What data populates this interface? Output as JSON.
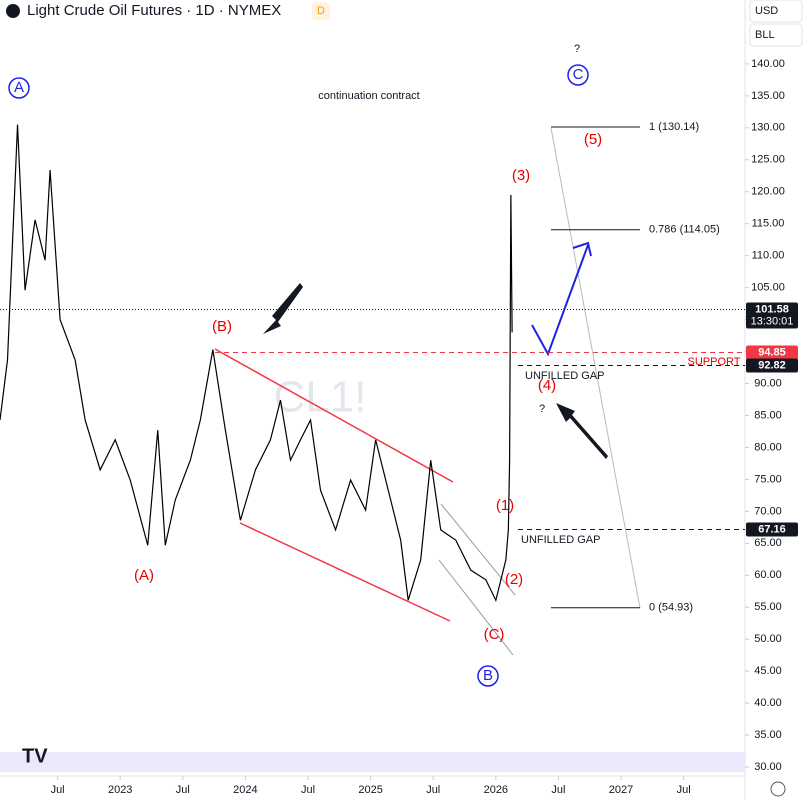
{
  "header": {
    "title": "Light Crude Oil Futures · 1D · NYMEX",
    "badge": "D",
    "currency": "USD",
    "unit": "BLL"
  },
  "chart_data": {
    "type": "line",
    "watermark": "CL1!",
    "color": "#000000",
    "x": [
      2022.04,
      2022.1,
      2022.18,
      2022.24,
      2022.32,
      2022.4,
      2022.44,
      2022.52,
      2022.64,
      2022.72,
      2022.84,
      2022.96,
      2023.08,
      2023.22,
      2023.3,
      2023.36,
      2023.44,
      2023.56,
      2023.64,
      2023.74,
      2023.84,
      2023.96,
      2024.08,
      2024.2,
      2024.28,
      2024.36,
      2024.44,
      2024.52,
      2024.6,
      2024.72,
      2024.84,
      2024.96,
      2025.04,
      2025.16,
      2025.24,
      2025.3,
      2025.4,
      2025.48,
      2025.56,
      2025.68,
      2025.8,
      2025.92,
      2026.0,
      2026.08,
      2026.1,
      2026.11,
      2026.12,
      2026.13
    ],
    "values": [
      84.3,
      93.7,
      130.5,
      104.6,
      115.6,
      109.3,
      123.4,
      100,
      93.7,
      84.3,
      76.5,
      81.2,
      74.9,
      64.7,
      82.7,
      64.7,
      71.8,
      78,
      84.3,
      95.3,
      82.7,
      68.6,
      76.5,
      81.2,
      87.4,
      78,
      81.2,
      84.3,
      73.3,
      67.1,
      74.9,
      70.2,
      81.2,
      71.8,
      65.5,
      56.1,
      62.4,
      78,
      67.1,
      65.5,
      60.8,
      59.3,
      56.1,
      62.4,
      67.1,
      78,
      119.5,
      98
    ],
    "xlim": [
      2022.04,
      2027.99
    ],
    "xticks": [
      {
        "value": 2022.5,
        "label": "Jul"
      },
      2023,
      {
        "value": 2023.5,
        "label": "Jul"
      },
      2024,
      {
        "value": 2024.5,
        "label": "Jul"
      },
      2025,
      {
        "value": 2025.5,
        "label": "Jul"
      },
      2026,
      {
        "value": 2026.5,
        "label": "Jul"
      },
      2027,
      {
        "value": 2027.5,
        "label": "Jul"
      }
    ],
    "ylim": [
      28.6,
      150
    ],
    "yticks": [
      {
        "value": 30,
        "label": "30.00"
      },
      {
        "value": 35,
        "label": "35.00"
      },
      {
        "value": 40,
        "label": "40.00"
      },
      {
        "value": 45,
        "label": "45.00"
      },
      {
        "value": 50,
        "label": "50.00"
      },
      {
        "value": 55,
        "label": "55.00"
      },
      {
        "value": 60,
        "label": "60.00"
      },
      {
        "value": 65,
        "label": "65.00"
      },
      {
        "value": 70,
        "label": "70.00"
      },
      {
        "value": 75,
        "label": "75.00"
      },
      {
        "value": 80,
        "label": "80.00"
      },
      {
        "value": 85,
        "label": "85.00"
      },
      {
        "value": 90,
        "label": "90.00"
      },
      {
        "value": 95,
        "label": "95.00"
      },
      {
        "value": 100,
        "label": "100.00"
      },
      {
        "value": 105,
        "label": "105.00"
      },
      {
        "value": 110,
        "label": "110.00"
      },
      {
        "value": 115,
        "label": "115.00"
      },
      {
        "value": 120,
        "label": "120.00"
      },
      {
        "value": 125,
        "label": "125.00"
      },
      {
        "value": 130,
        "label": "130.00"
      },
      {
        "value": 135,
        "label": "135.00"
      },
      {
        "value": 140,
        "label": "140.00"
      }
    ],
    "hlines": [
      {
        "value": 101.58,
        "color": "#131722",
        "time": "13:30:01"
      },
      {
        "value": 94.85,
        "color": "#f23645"
      },
      {
        "value": 92.82,
        "color": "#131722"
      },
      {
        "value": 67.16,
        "color": "#131722"
      }
    ],
    "fib": [
      {
        "value": 130.14,
        "label": "1 (130.14)"
      },
      {
        "value": 114.05,
        "label": "0.786 (114.05)"
      },
      {
        "value": 54.93,
        "label": "0 (54.93)"
      }
    ],
    "annotations": [
      {
        "text": "A",
        "color": "#1e22e6"
      },
      {
        "text": "(A)",
        "color": "#e60000"
      },
      {
        "text": "(B)",
        "color": "#e60000"
      },
      {
        "text": "(C)",
        "color": "#e60000"
      },
      {
        "text": "B",
        "color": "#1e22e6"
      },
      {
        "text": "(1)",
        "color": "#e60000"
      },
      {
        "text": "(2)",
        "color": "#e60000"
      },
      {
        "text": "(3)",
        "color": "#e60000"
      },
      {
        "text": "(4)",
        "color": "#e60000"
      },
      {
        "text": "(5)",
        "color": "#e60000"
      },
      {
        "text": "C",
        "color": "#1e22e6"
      },
      {
        "text": "?",
        "color": "#131722"
      },
      {
        "text": "?",
        "color": "#131722"
      },
      {
        "text": "continuation contract",
        "color": "#131722"
      },
      {
        "text": "UNFILLED GAP",
        "color": "#131722"
      },
      {
        "text": "UNFILLED GAP",
        "color": "#131722"
      },
      {
        "text": "SUPPORT",
        "color": "#e60000"
      }
    ]
  }
}
